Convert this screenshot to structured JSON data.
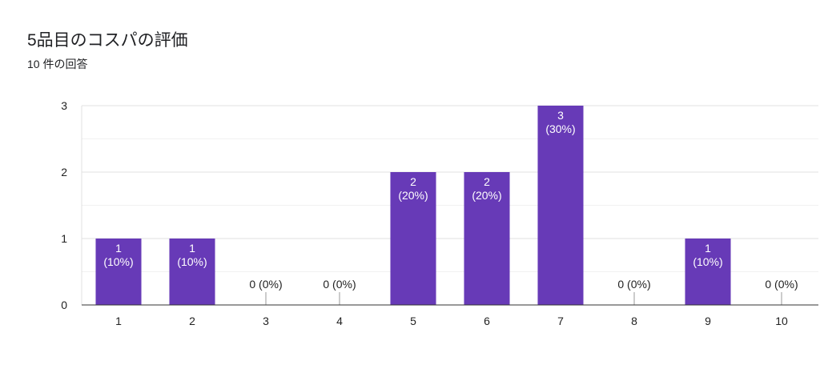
{
  "header": {
    "title": "5品目のコスパの評価",
    "subtitle": "10 件の回答"
  },
  "colors": {
    "bar": "#673ab7",
    "grid_major": "#e0e0e0",
    "grid_minor": "#f1f1f1",
    "axis": "#333333",
    "zero_tick": "#999999"
  },
  "chart_data": {
    "type": "bar",
    "title": "5品目のコスパの評価",
    "xlabel": "",
    "ylabel": "",
    "categories": [
      "1",
      "2",
      "3",
      "4",
      "5",
      "6",
      "7",
      "8",
      "9",
      "10"
    ],
    "values": [
      1,
      1,
      0,
      0,
      2,
      2,
      3,
      0,
      1,
      0
    ],
    "labels": [
      "1\n(10%)",
      "1\n(10%)",
      "0 (0%)",
      "0 (0%)",
      "2\n(20%)",
      "2\n(20%)",
      "3\n(30%)",
      "0 (0%)",
      "1\n(10%)",
      "0 (0%)"
    ],
    "yticks": [
      "0",
      "1",
      "2",
      "3"
    ],
    "ylim": [
      0,
      3
    ],
    "grid": true,
    "legend": "none"
  }
}
